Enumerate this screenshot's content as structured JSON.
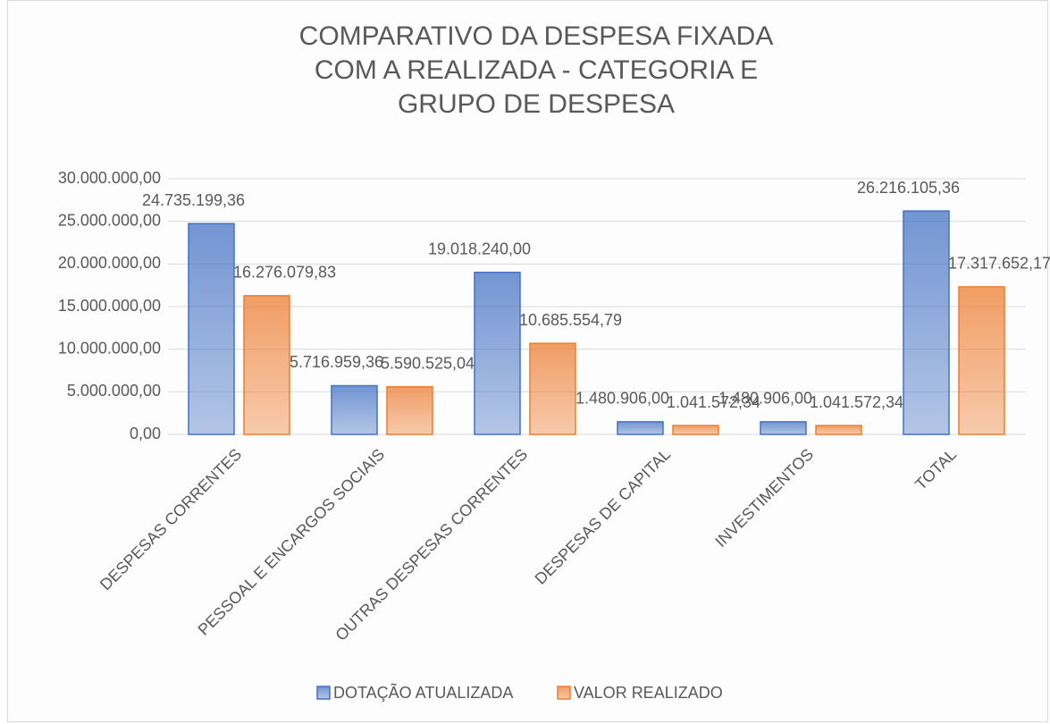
{
  "chart_data": {
    "type": "bar",
    "title": "COMPARATIVO DA DESPESA FIXADA COM A REALIZADA - CATEGORIA E GRUPO DE DESPESA",
    "categories": [
      "DESPESAS CORRENTES",
      "PESSOAL E ENCARGOS SOCIAIS",
      "OUTRAS DESPESAS CORRENTES",
      "DESPESAS DE CAPITAL",
      "INVESTIMENTOS",
      "TOTAL"
    ],
    "series": [
      {
        "name": "DOTAÇÃO ATUALIZADA",
        "color": "#4472c4",
        "values": [
          24735199.36,
          5716959.36,
          19018240.0,
          1480906.0,
          1480906.0,
          26216105.36
        ],
        "value_labels": [
          "24.735.199,36",
          "5.716.959,36",
          "19.018.240,00",
          "1.480.906,00",
          "1.480.906,00",
          "26.216.105,36"
        ]
      },
      {
        "name": "VALOR REALIZADO",
        "color": "#ed7d31",
        "values": [
          16276079.83,
          5590525.04,
          10685554.79,
          1041572.34,
          1041572.34,
          17317652.17
        ],
        "value_labels": [
          "16.276.079,83",
          "5.590.525,04",
          "10.685.554,79",
          "1.041.572,34",
          "1.041.572,34",
          "17.317.652,17"
        ]
      }
    ],
    "ylim": [
      0,
      30000000
    ],
    "yticks": [
      {
        "value": 0,
        "label": "0,00"
      },
      {
        "value": 5000000,
        "label": "5.000.000,00"
      },
      {
        "value": 10000000,
        "label": "10.000.000,00"
      },
      {
        "value": 15000000,
        "label": "15.000.000,00"
      },
      {
        "value": 20000000,
        "label": "20.000.000,00"
      },
      {
        "value": 25000000,
        "label": "25.000.000,00"
      },
      {
        "value": 30000000,
        "label": "30.000.000,00"
      }
    ],
    "grid": true,
    "legend": "bottom"
  }
}
